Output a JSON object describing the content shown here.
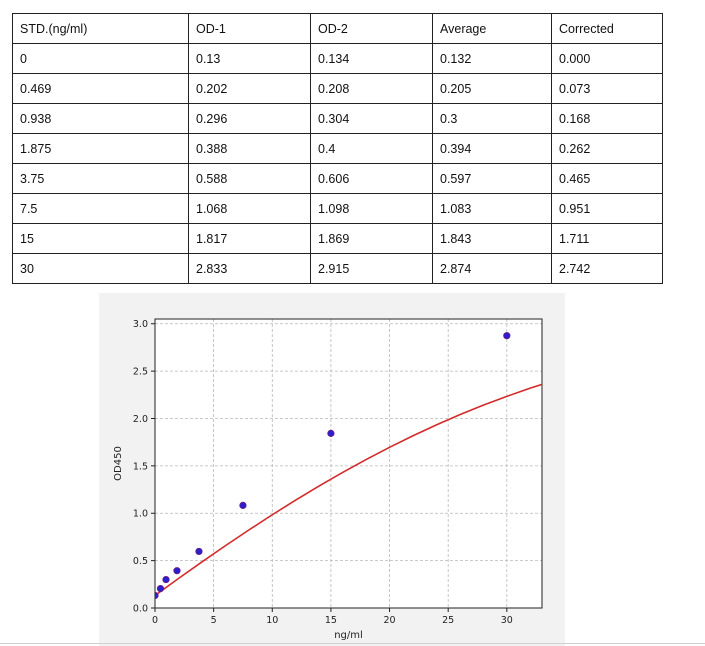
{
  "table": {
    "headers": [
      "STD.(ng/ml)",
      "OD-1",
      "OD-2",
      "Average",
      "Corrected"
    ],
    "rows": [
      [
        "0",
        "0.13",
        "0.134",
        "0.132",
        "0.000"
      ],
      [
        "0.469",
        "0.202",
        "0.208",
        "0.205",
        "0.073"
      ],
      [
        "0.938",
        "0.296",
        "0.304",
        "0.3",
        "0.168"
      ],
      [
        "1.875",
        "0.388",
        "0.4",
        "0.394",
        "0.262"
      ],
      [
        "3.75",
        "0.588",
        "0.606",
        "0.597",
        "0.465"
      ],
      [
        "7.5",
        "1.068",
        "1.098",
        "1.083",
        "0.951"
      ],
      [
        "15",
        "1.817",
        "1.869",
        "1.843",
        "1.711"
      ],
      [
        "30",
        "2.833",
        "2.915",
        "2.874",
        "2.742"
      ]
    ]
  },
  "chart_data": {
    "type": "scatter",
    "title": "",
    "xlabel": "ng/ml",
    "ylabel": "OD450",
    "xlim": [
      0,
      33
    ],
    "ylim": [
      0,
      3.05
    ],
    "xticks": [
      0,
      5,
      10,
      15,
      20,
      25,
      30
    ],
    "yticks": [
      0.0,
      0.5,
      1.0,
      1.5,
      2.0,
      2.5,
      3.0
    ],
    "xtick_labels": [
      "0",
      "5",
      "10",
      "15",
      "20",
      "25",
      "30"
    ],
    "ytick_labels": [
      "0.0",
      "0.5",
      "1.0",
      "1.5",
      "2.0",
      "2.5",
      "3.0"
    ],
    "grid": true,
    "points": {
      "x": [
        0,
        0.469,
        0.938,
        1.875,
        3.75,
        7.5,
        15,
        30
      ],
      "y": [
        0.132,
        0.205,
        0.3,
        0.394,
        0.597,
        1.083,
        1.843,
        2.874
      ],
      "color": "#2a1fd0",
      "edge_color": "#6a1a7a"
    },
    "fit_curve": {
      "x": [
        0,
        1,
        2,
        4,
        6,
        8,
        10,
        12,
        14,
        16,
        18,
        20,
        22,
        24,
        26,
        28,
        30,
        32,
        33
      ],
      "y": [
        0.132,
        0.222,
        0.311,
        0.486,
        0.657,
        0.823,
        0.984,
        1.139,
        1.288,
        1.431,
        1.567,
        1.696,
        1.818,
        1.933,
        2.041,
        2.141,
        2.234,
        2.32,
        2.36
      ],
      "color": "#d42a2a"
    }
  }
}
